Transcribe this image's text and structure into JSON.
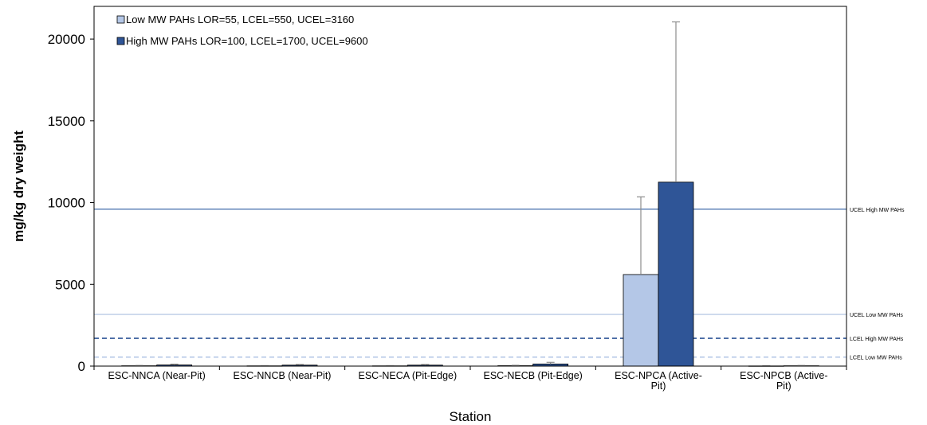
{
  "chart_data": {
    "type": "bar",
    "xlabel": "Station",
    "ylabel": "mg/kg dry weight",
    "ylim": [
      0,
      22000
    ],
    "yticks": [
      0,
      5000,
      10000,
      15000,
      20000
    ],
    "categories": [
      [
        "ESC-NNCA (Near-Pit)"
      ],
      [
        "ESC-NNCB (Near-Pit)"
      ],
      [
        "ESC-NECA (Pit-Edge)"
      ],
      [
        "ESC-NECB (Pit-Edge)"
      ],
      [
        "ESC-NPCA (Active-",
        "Pit)"
      ],
      [
        "ESC-NPCB (Active-",
        "Pit)"
      ]
    ],
    "series": [
      {
        "name": "Low MW PAHs LOR=55, LCEL=550, UCEL=3160",
        "color": "#b4c7e7",
        "values": [
          20,
          15,
          15,
          25,
          5600,
          10
        ],
        "error_upper": [
          40,
          30,
          30,
          50,
          10350,
          20
        ]
      },
      {
        "name": "High MW PAHs LOR=100, LCEL=1700, UCEL=9600",
        "color": "#2f5597",
        "values": [
          70,
          60,
          60,
          130,
          11250,
          20
        ],
        "error_upper": [
          120,
          100,
          100,
          230,
          21050,
          40
        ]
      }
    ],
    "reference_lines": [
      {
        "label": "UCEL High MW PAHs",
        "value": 9600,
        "color": "#6f8fbf",
        "style": "solid"
      },
      {
        "label": "UCEL Low MW PAHs",
        "value": 3160,
        "color": "#c5d3ea",
        "style": "solid"
      },
      {
        "label": "LCEL High MW PAHs",
        "value": 1700,
        "color": "#2f5597",
        "style": "dashed"
      },
      {
        "label": "LCEL Low MW PAHs",
        "value": 550,
        "color": "#b4c7e7",
        "style": "dashed"
      }
    ],
    "legend_position": "top-left",
    "grid": false
  }
}
